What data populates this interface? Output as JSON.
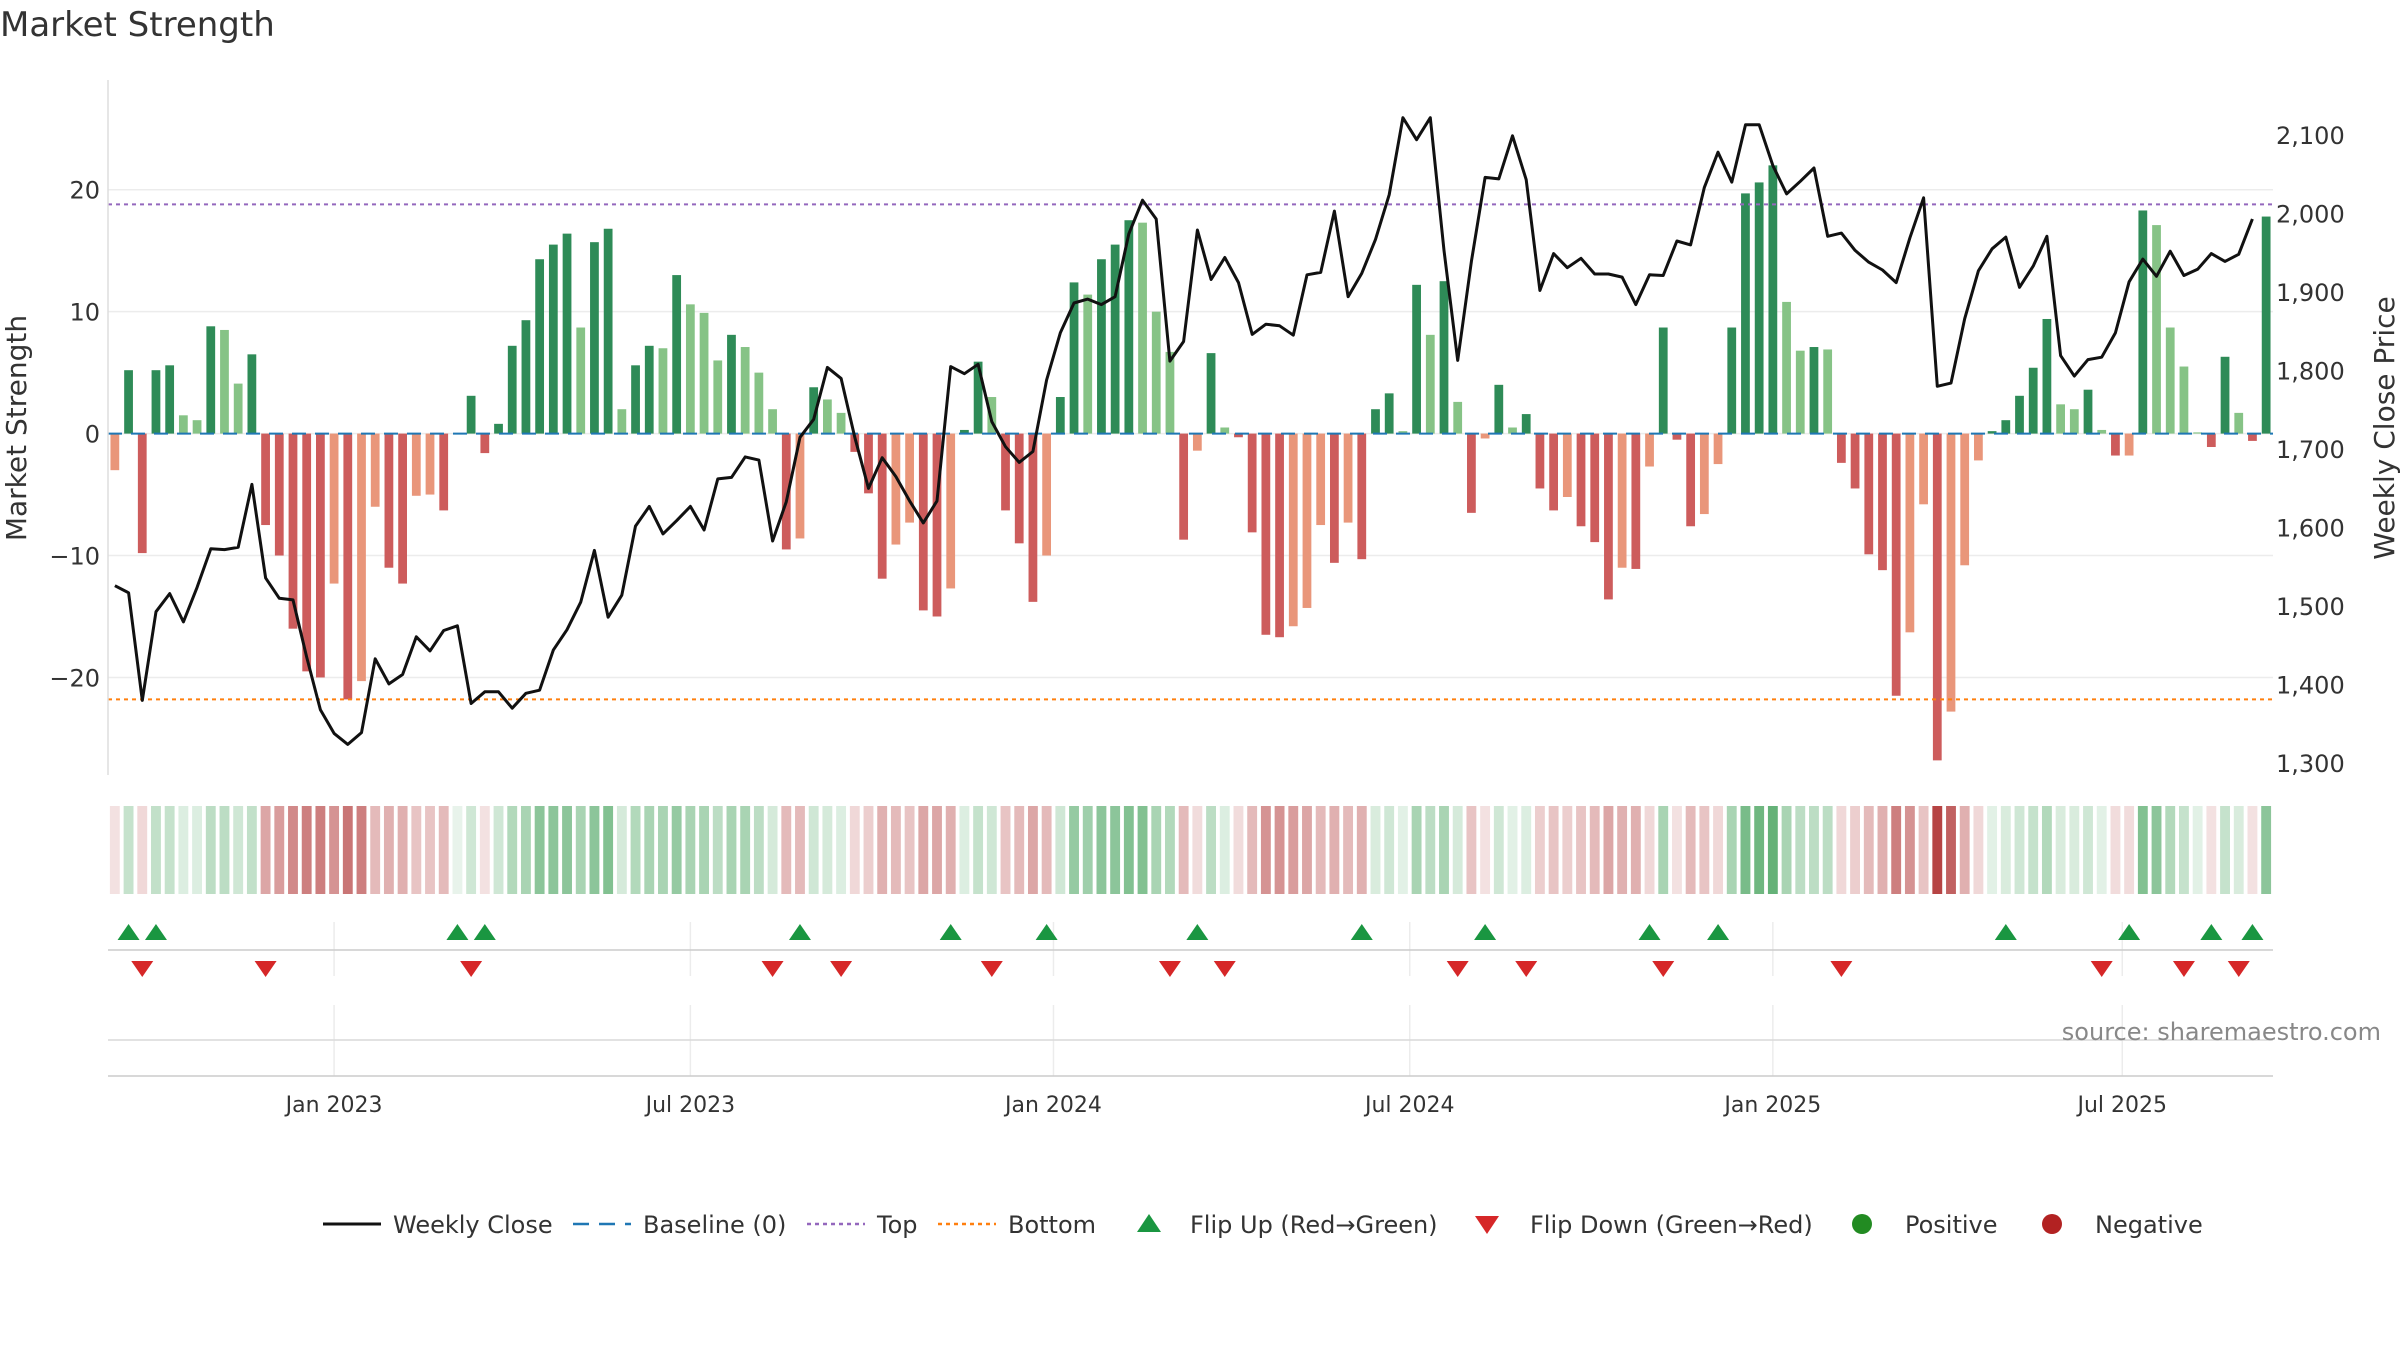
{
  "title": "Market Strength",
  "source": "source: sharemaestro.com",
  "colors": {
    "pos_dark": "#2e8b57",
    "pos_light": "#86c386",
    "neg_dark": "#cd5c5c",
    "neg_light": "#e9967a",
    "close": "#111111",
    "baseline": "#1f77b4",
    "top": "#9467bd",
    "bottom": "#ff7f0e",
    "flip_up": "#1a9641",
    "flip_down": "#d62728",
    "legend_positive": "#228b22",
    "legend_negative": "#b22222"
  },
  "legend": [
    {
      "label": "Weekly Close",
      "kind": "line",
      "color": "#111111"
    },
    {
      "label": "Baseline (0)",
      "kind": "dash",
      "color": "#1f77b4"
    },
    {
      "label": "Top",
      "kind": "dot",
      "color": "#9467bd"
    },
    {
      "label": "Bottom",
      "kind": "dot",
      "color": "#ff7f0e"
    },
    {
      "label": "Flip Up (Red→Green)",
      "kind": "tri-up",
      "color": "#1a9641"
    },
    {
      "label": "Flip Down (Green→Red)",
      "kind": "tri-down",
      "color": "#d62728"
    },
    {
      "label": "Positive",
      "kind": "circle",
      "color": "#228b22"
    },
    {
      "label": "Negative",
      "kind": "circle",
      "color": "#b22222"
    }
  ],
  "chart_data": {
    "type": "bar",
    "ylabel_left": "Market Strength",
    "ylabel_right": "Weekly Close Price",
    "y_left_range": [
      -28,
      29
    ],
    "y_left_ticks": [
      20,
      10,
      0,
      -10,
      -20
    ],
    "y_left_tick_labels": [
      "20",
      "10",
      "0",
      "−10",
      "−20"
    ],
    "y_right_range": [
      1285,
      2170
    ],
    "y_right_ticks": [
      2100,
      2000,
      1900,
      1800,
      1700,
      1600,
      1500,
      1400,
      1300
    ],
    "y_right_tick_labels": [
      "2,100",
      "2,000",
      "1,900",
      "1,800",
      "1,700",
      "1,600",
      "1,500",
      "1,400",
      "1,300"
    ],
    "top_threshold": 18.8,
    "bottom_threshold": -21.8,
    "baseline": 0,
    "x_tick_labels": [
      {
        "label": "Jan 2023",
        "week": 16
      },
      {
        "label": "Jul 2023",
        "week": 42
      },
      {
        "label": "Jan 2024",
        "week": 68.5
      },
      {
        "label": "Jul 2024",
        "week": 94.5
      },
      {
        "label": "Jan 2025",
        "week": 121
      },
      {
        "label": "Jul 2025",
        "week": 146.5
      }
    ],
    "strength": [
      -3,
      5.2,
      -9.8,
      5.2,
      5.6,
      1.5,
      1.1,
      8.8,
      8.5,
      4.1,
      6.5,
      -7.5,
      -10,
      -16,
      -19.5,
      -20,
      -12.3,
      -21.8,
      -20.3,
      -6,
      -11,
      -12.3,
      -5.1,
      -5,
      -6.3,
      0,
      3.1,
      -1.6,
      0.8,
      7.2,
      9.3,
      14.3,
      15.5,
      16.4,
      8.7,
      15.7,
      16.8,
      2,
      5.6,
      7.2,
      7,
      13,
      10.6,
      9.9,
      6,
      8.1,
      7.1,
      5,
      2,
      -9.5,
      -8.6,
      3.8,
      2.8,
      1.7,
      -1.5,
      -4.9,
      -11.9,
      -9.1,
      -7.3,
      -14.5,
      -15,
      -12.7,
      0.3,
      5.9,
      3,
      -6.3,
      -9,
      -13.8,
      -10,
      3,
      12.4,
      11.4,
      14.3,
      15.5,
      17.5,
      17.3,
      10,
      6.7,
      -8.7,
      -1.4,
      6.6,
      0.5,
      -0.3,
      -8.1,
      -16.5,
      -16.7,
      -15.8,
      -14.3,
      -7.5,
      -10.6,
      -7.3,
      -10.3,
      2,
      3.3,
      0.2,
      12.2,
      8.1,
      12.5,
      2.6,
      -6.5,
      -0.4,
      4,
      0.5,
      1.6,
      -4.5,
      -6.3,
      -5.2,
      -7.6,
      -8.9,
      -13.6,
      -11,
      -11.1,
      -2.7,
      8.7,
      -0.5,
      -7.6,
      -6.6,
      -2.5,
      8.7,
      19.7,
      20.6,
      22,
      10.8,
      6.8,
      7.1,
      6.9,
      -2.4,
      -4.5,
      -9.9,
      -11.2,
      -21.5,
      -16.3,
      -5.8,
      -26.8,
      -22.8,
      -10.8,
      -2.2,
      0.2,
      1.1,
      3.1,
      5.4,
      9.4,
      2.4,
      2,
      3.6,
      0.3,
      -1.8,
      -1.8,
      18.3,
      17.1,
      8.7,
      5.5,
      0.1,
      -1.1,
      6.3,
      1.7,
      -0.6,
      17.8
    ],
    "weekly_close": [
      1526,
      1517,
      1380,
      1493,
      1516,
      1480,
      1524,
      1573,
      1572,
      1575,
      1655,
      1536,
      1510,
      1508,
      1435,
      1368,
      1338,
      1324,
      1339,
      1433,
      1401,
      1413,
      1461,
      1443,
      1469,
      1475,
      1376,
      1391,
      1391,
      1370,
      1389,
      1393,
      1444,
      1470,
      1505,
      1571,
      1486,
      1514,
      1602,
      1627,
      1592,
      1609,
      1627,
      1597,
      1662,
      1664,
      1690,
      1686,
      1583,
      1633,
      1715,
      1738,
      1804,
      1790,
      1715,
      1650,
      1689,
      1665,
      1634,
      1606,
      1634,
      1805,
      1796,
      1808,
      1735,
      1703,
      1683,
      1697,
      1788,
      1848,
      1886,
      1891,
      1884,
      1894,
      1974,
      2017,
      1993,
      1812,
      1837,
      1979,
      1916,
      1944,
      1912,
      1846,
      1859,
      1857,
      1845,
      1922,
      1925,
      2003,
      1894,
      1924,
      1967,
      2024,
      2122,
      2094,
      2122,
      1953,
      1813,
      1939,
      2046,
      2044,
      2099,
      2043,
      1902,
      1949,
      1931,
      1943,
      1923,
      1923,
      1919,
      1884,
      1922,
      1921,
      1965,
      1960,
      2033,
      2078,
      2040,
      2113,
      2113,
      2061,
      2025,
      2041,
      2058,
      1971,
      1975,
      1953,
      1938,
      1928,
      1912,
      1969,
      2020,
      1780,
      1784,
      1866,
      1927,
      1955,
      1970,
      1906,
      1933,
      1971,
      1819,
      1793,
      1814,
      1817,
      1848,
      1913,
      1942,
      1920,
      1952,
      1921,
      1929,
      1949,
      1939,
      1948,
      1993
    ],
    "shade": [
      0.15,
      0.3,
      0.2,
      0.32,
      0.3,
      0.18,
      0.18,
      0.35,
      0.35,
      0.25,
      0.32,
      0.45,
      0.5,
      0.6,
      0.65,
      0.65,
      0.55,
      0.7,
      0.65,
      0.35,
      0.4,
      0.4,
      0.3,
      0.3,
      0.35,
      0.12,
      0.25,
      0.15,
      0.25,
      0.4,
      0.45,
      0.6,
      0.6,
      0.6,
      0.45,
      0.6,
      0.65,
      0.22,
      0.4,
      0.45,
      0.45,
      0.55,
      0.45,
      0.45,
      0.35,
      0.45,
      0.45,
      0.35,
      0.22,
      0.35,
      0.35,
      0.25,
      0.22,
      0.18,
      0.2,
      0.25,
      0.4,
      0.35,
      0.3,
      0.45,
      0.45,
      0.4,
      0.18,
      0.3,
      0.25,
      0.3,
      0.35,
      0.45,
      0.35,
      0.25,
      0.55,
      0.5,
      0.6,
      0.6,
      0.65,
      0.65,
      0.45,
      0.4,
      0.35,
      0.18,
      0.35,
      0.18,
      0.18,
      0.35,
      0.55,
      0.55,
      0.5,
      0.45,
      0.35,
      0.4,
      0.35,
      0.4,
      0.2,
      0.25,
      0.15,
      0.45,
      0.35,
      0.45,
      0.22,
      0.3,
      0.15,
      0.25,
      0.15,
      0.18,
      0.25,
      0.3,
      0.25,
      0.3,
      0.35,
      0.45,
      0.4,
      0.4,
      0.2,
      0.45,
      0.15,
      0.35,
      0.3,
      0.2,
      0.45,
      0.7,
      0.75,
      0.8,
      0.45,
      0.35,
      0.35,
      0.35,
      0.2,
      0.25,
      0.35,
      0.4,
      0.65,
      0.55,
      0.3,
      0.95,
      0.8,
      0.4,
      0.2,
      0.15,
      0.2,
      0.25,
      0.3,
      0.4,
      0.2,
      0.2,
      0.25,
      0.15,
      0.18,
      0.18,
      0.65,
      0.6,
      0.4,
      0.3,
      0.15,
      0.15,
      0.3,
      0.2,
      0.15,
      0.6
    ],
    "flip_up_weeks": [
      1,
      3,
      25,
      27,
      50,
      61,
      68,
      79,
      91,
      100,
      112,
      117,
      138,
      147,
      153,
      156
    ],
    "flip_down_weeks": [
      2,
      11,
      26,
      48,
      53,
      64,
      77,
      81,
      98,
      103,
      113,
      126,
      145,
      151,
      155
    ]
  }
}
